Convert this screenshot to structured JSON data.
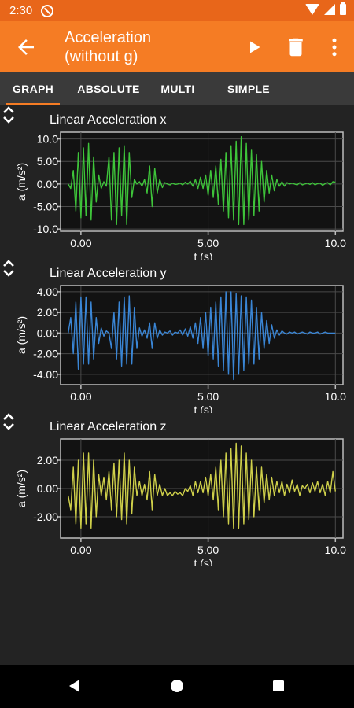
{
  "status_bar": {
    "time": "2:30"
  },
  "app_bar": {
    "title_line1": "Acceleration",
    "title_line2": "(without g)",
    "icons": [
      "back-arrow-icon",
      "play-icon",
      "trash-icon",
      "more-vert-icon"
    ]
  },
  "tabs": [
    {
      "label": "GRAPH",
      "active": true
    },
    {
      "label": "ABSOLUTE",
      "active": false
    },
    {
      "label": "MULTI",
      "active": false
    },
    {
      "label": "SIMPLE",
      "active": false
    }
  ],
  "colors": {
    "accent": "#f57c24",
    "x": "#3ec43a",
    "y": "#3a86d6",
    "z": "#cfd04a",
    "background": "#232323"
  },
  "chart_data": [
    {
      "type": "line",
      "title": "Linear Acceleration x",
      "xlabel": "t (s)",
      "ylabel": "a (m/s²)",
      "xlim": [
        -0.8,
        10.3
      ],
      "ylim": [
        -10.5,
        11.5
      ],
      "x_ticks": [
        0,
        5,
        10
      ],
      "x_tick_labels": [
        "0.00",
        "5.00",
        "10.0"
      ],
      "y_ticks": [
        10,
        5,
        0,
        -5,
        -10
      ],
      "y_tick_labels": [
        "10.0",
        "5.00",
        "0.00",
        "-5.00",
        "-10.0"
      ],
      "grid": true,
      "series": [
        {
          "color": "#3ec43a",
          "x": [
            -0.5,
            -0.4,
            -0.3,
            -0.2,
            -0.1,
            0.0,
            0.1,
            0.2,
            0.3,
            0.4,
            0.5,
            0.6,
            0.7,
            0.8,
            0.9,
            1.0,
            1.1,
            1.2,
            1.3,
            1.4,
            1.5,
            1.6,
            1.7,
            1.8,
            1.9,
            2.0,
            2.1,
            2.2,
            2.3,
            2.4,
            2.5,
            2.6,
            2.7,
            2.8,
            2.9,
            3.0,
            3.1,
            3.2,
            3.3,
            3.4,
            3.5,
            3.6,
            3.7,
            3.8,
            3.9,
            4.0,
            4.1,
            4.2,
            4.3,
            4.4,
            4.5,
            4.6,
            4.7,
            4.8,
            4.9,
            5.0,
            5.1,
            5.2,
            5.3,
            5.4,
            5.5,
            5.6,
            5.7,
            5.8,
            5.9,
            6.0,
            6.1,
            6.2,
            6.3,
            6.4,
            6.5,
            6.6,
            6.7,
            6.8,
            6.9,
            7.0,
            7.1,
            7.2,
            7.3,
            7.4,
            7.5,
            7.6,
            7.7,
            7.8,
            7.9,
            8.0,
            8.1,
            8.2,
            8.3,
            8.4,
            8.5,
            8.6,
            8.7,
            8.8,
            8.9,
            9.0,
            9.1,
            9.2,
            9.3,
            9.4,
            9.5,
            9.6,
            9.7,
            9.8,
            9.9,
            10.0
          ],
          "y": [
            0.0,
            -1.0,
            3.0,
            -6.0,
            7.0,
            -7.5,
            8.0,
            -7.0,
            9.0,
            -8.0,
            6.0,
            -4.0,
            2.0,
            -1.0,
            0.5,
            -0.5,
            6.0,
            -8.0,
            7.0,
            -9.0,
            8.0,
            -7.0,
            8.5,
            -9.0,
            7.0,
            -3.0,
            1.0,
            0.0,
            0.5,
            -0.5,
            1.0,
            -2.0,
            4.0,
            -5.0,
            3.5,
            -2.0,
            1.0,
            -0.8,
            0.3,
            0.0,
            -0.2,
            0.2,
            -0.1,
            0.0,
            0.2,
            -0.2,
            0.4,
            0.0,
            0.6,
            -0.5,
            1.0,
            -1.0,
            1.5,
            -1.0,
            2.0,
            -2.5,
            3.0,
            -3.0,
            4.0,
            -4.5,
            5.5,
            -6.0,
            7.0,
            -7.5,
            8.5,
            -8.0,
            9.5,
            -9.0,
            10.5,
            -9.0,
            9.0,
            -8.0,
            7.5,
            -7.0,
            6.5,
            -6.0,
            5.0,
            -4.0,
            3.0,
            -2.0,
            2.0,
            -1.5,
            1.0,
            -0.5,
            0.5,
            -0.5,
            0.3,
            0.0,
            0.2,
            0.0,
            -0.2,
            0.3,
            -0.2,
            0.0,
            0.2,
            -0.1,
            0.3,
            -0.2,
            0.1,
            0.2,
            -0.3,
            0.1,
            0.3,
            -0.2,
            0.5,
            0.4
          ]
        }
      ]
    },
    {
      "type": "line",
      "title": "Linear Acceleration y",
      "xlabel": "t (s)",
      "ylabel": "a (m/s²)",
      "xlim": [
        -0.8,
        10.3
      ],
      "ylim": [
        -5.0,
        4.6
      ],
      "x_ticks": [
        0,
        5,
        10
      ],
      "x_tick_labels": [
        "0.00",
        "5.00",
        "10.0"
      ],
      "y_ticks": [
        4,
        2,
        0,
        -2,
        -4
      ],
      "y_tick_labels": [
        "4.00",
        "2.00",
        "0.00",
        "-2.00",
        "-4.00"
      ],
      "grid": true,
      "series": [
        {
          "color": "#3a86d6",
          "x": [
            -0.5,
            -0.4,
            -0.3,
            -0.2,
            -0.1,
            0.0,
            0.1,
            0.2,
            0.3,
            0.4,
            0.5,
            0.6,
            0.7,
            0.8,
            0.9,
            1.0,
            1.1,
            1.2,
            1.3,
            1.4,
            1.5,
            1.6,
            1.7,
            1.8,
            1.9,
            2.0,
            2.1,
            2.2,
            2.3,
            2.4,
            2.5,
            2.6,
            2.7,
            2.8,
            2.9,
            3.0,
            3.1,
            3.2,
            3.3,
            3.4,
            3.5,
            3.6,
            3.7,
            3.8,
            3.9,
            4.0,
            4.1,
            4.2,
            4.3,
            4.4,
            4.5,
            4.6,
            4.7,
            4.8,
            4.9,
            5.0,
            5.1,
            5.2,
            5.3,
            5.4,
            5.5,
            5.6,
            5.7,
            5.8,
            5.9,
            6.0,
            6.1,
            6.2,
            6.3,
            6.4,
            6.5,
            6.6,
            6.7,
            6.8,
            6.9,
            7.0,
            7.1,
            7.2,
            7.3,
            7.4,
            7.5,
            7.6,
            7.7,
            7.8,
            7.9,
            8.0,
            8.1,
            8.2,
            8.3,
            8.4,
            8.5,
            8.6,
            8.7,
            8.8,
            8.9,
            9.0,
            9.1,
            9.2,
            9.3,
            9.4,
            9.5,
            9.6,
            9.7,
            9.8,
            9.9,
            10.0
          ],
          "y": [
            0.0,
            1.5,
            -2.0,
            3.0,
            -3.5,
            3.5,
            -3.0,
            3.5,
            -3.0,
            3.0,
            -2.5,
            1.5,
            -1.0,
            0.5,
            -0.3,
            0.2,
            0.0,
            -1.5,
            2.0,
            -2.5,
            3.0,
            -3.2,
            3.5,
            -3.0,
            3.6,
            -3.0,
            2.5,
            -1.5,
            0.5,
            -0.3,
            0.3,
            -0.5,
            1.0,
            -1.5,
            1.0,
            -0.5,
            0.3,
            -0.2,
            0.1,
            0.0,
            0.2,
            -0.2,
            0.1,
            0.0,
            0.3,
            -0.2,
            0.4,
            -0.3,
            0.6,
            -0.5,
            1.0,
            -1.0,
            1.5,
            -1.5,
            2.0,
            -2.2,
            2.5,
            -2.5,
            3.0,
            -3.2,
            3.5,
            -3.6,
            4.0,
            -4.0,
            4.0,
            -4.5,
            3.8,
            -4.0,
            3.6,
            -3.6,
            3.5,
            -3.0,
            3.2,
            -3.0,
            2.5,
            -2.5,
            2.0,
            -1.5,
            1.2,
            -1.0,
            0.8,
            -0.5,
            0.3,
            -0.2,
            0.2,
            0.0,
            -0.1,
            0.1,
            0.0,
            0.1,
            -0.1,
            0.0,
            0.1,
            0.0,
            -0.1,
            0.1,
            0.0,
            0.0,
            0.1,
            -0.1,
            0.0,
            0.1,
            0.0,
            0.0,
            0.0,
            0.0
          ]
        }
      ]
    },
    {
      "type": "line",
      "title": "Linear Acceleration z",
      "xlabel": "t (s)",
      "ylabel": "a (m/s²)",
      "xlim": [
        -0.8,
        10.3
      ],
      "ylim": [
        -3.5,
        3.5
      ],
      "x_ticks": [
        0,
        5,
        10
      ],
      "x_tick_labels": [
        "0.00",
        "5.00",
        "10.0"
      ],
      "y_ticks": [
        2,
        0,
        -2
      ],
      "y_tick_labels": [
        "2.00",
        "0.00",
        "-2.00"
      ],
      "grid": true,
      "series": [
        {
          "color": "#cfd04a",
          "x": [
            -0.5,
            -0.4,
            -0.3,
            -0.2,
            -0.1,
            0.0,
            0.1,
            0.2,
            0.3,
            0.4,
            0.5,
            0.6,
            0.7,
            0.8,
            0.9,
            1.0,
            1.1,
            1.2,
            1.3,
            1.4,
            1.5,
            1.6,
            1.7,
            1.8,
            1.9,
            2.0,
            2.1,
            2.2,
            2.3,
            2.4,
            2.5,
            2.6,
            2.7,
            2.8,
            2.9,
            3.0,
            3.1,
            3.2,
            3.3,
            3.4,
            3.5,
            3.6,
            3.7,
            3.8,
            3.9,
            4.0,
            4.1,
            4.2,
            4.3,
            4.4,
            4.5,
            4.6,
            4.7,
            4.8,
            4.9,
            5.0,
            5.1,
            5.2,
            5.3,
            5.4,
            5.5,
            5.6,
            5.7,
            5.8,
            5.9,
            6.0,
            6.1,
            6.2,
            6.3,
            6.4,
            6.5,
            6.6,
            6.7,
            6.8,
            6.9,
            7.0,
            7.1,
            7.2,
            7.3,
            7.4,
            7.5,
            7.6,
            7.7,
            7.8,
            7.9,
            8.0,
            8.1,
            8.2,
            8.3,
            8.4,
            8.5,
            8.6,
            8.7,
            8.8,
            8.9,
            9.0,
            9.1,
            9.2,
            9.3,
            9.4,
            9.5,
            9.6,
            9.7,
            9.8,
            9.9,
            10.0
          ],
          "y": [
            -0.5,
            -1.5,
            1.5,
            -2.5,
            2.0,
            -2.8,
            2.5,
            -2.5,
            2.5,
            -2.8,
            2.0,
            -2.0,
            1.0,
            -0.5,
            0.8,
            -0.8,
            1.2,
            -1.5,
            1.8,
            -2.0,
            2.0,
            -2.2,
            2.5,
            -2.5,
            2.0,
            -1.8,
            1.5,
            -0.5,
            0.5,
            -0.5,
            0.3,
            -0.8,
            1.2,
            -1.5,
            1.0,
            -0.5,
            0.3,
            -0.5,
            0.0,
            -0.5,
            -0.3,
            -0.5,
            -0.2,
            -0.4,
            -0.3,
            -0.5,
            0.0,
            -0.2,
            0.2,
            -0.5,
            0.5,
            -0.3,
            0.5,
            -0.3,
            0.8,
            -0.5,
            1.0,
            -0.8,
            1.5,
            -1.5,
            2.0,
            -2.0,
            2.5,
            -2.5,
            2.8,
            -2.8,
            3.2,
            -2.8,
            3.0,
            -2.5,
            2.5,
            -2.2,
            2.0,
            -2.0,
            1.5,
            -1.5,
            1.5,
            -1.0,
            1.0,
            -0.8,
            0.8,
            -0.5,
            0.5,
            -0.3,
            0.5,
            -0.5,
            0.3,
            -0.3,
            0.6,
            -0.2,
            0.3,
            -0.5,
            0.2,
            0.0,
            0.3,
            -0.3,
            0.4,
            -0.2,
            0.5,
            -0.3,
            0.3,
            -0.5,
            0.5,
            -0.3,
            1.2,
            -0.2
          ]
        }
      ]
    }
  ]
}
